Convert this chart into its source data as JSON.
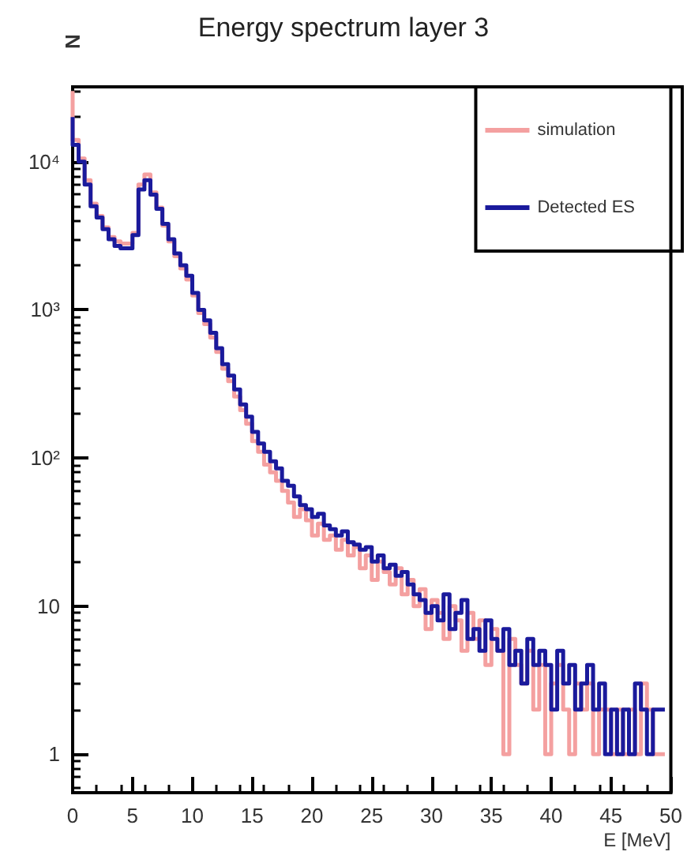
{
  "chart_data": {
    "type": "step",
    "title": "Energy spectrum layer 3",
    "xlabel": "E [MeV]",
    "ylabel": "N",
    "x": [
      0,
      0.5,
      1,
      1.5,
      2,
      2.5,
      3,
      3.5,
      4,
      4.5,
      5,
      5.5,
      6,
      6.5,
      7,
      7.5,
      8,
      8.5,
      9,
      9.5,
      10,
      10.5,
      11,
      11.5,
      12,
      12.5,
      13,
      13.5,
      14,
      14.5,
      15,
      15.5,
      16,
      16.5,
      17,
      17.5,
      18,
      18.5,
      19,
      19.5,
      20,
      20.5,
      21,
      21.5,
      22,
      22.5,
      23,
      23.5,
      24,
      24.5,
      25,
      25.5,
      26,
      26.5,
      27,
      27.5,
      28,
      28.5,
      29,
      29.5,
      30,
      30.5,
      31,
      31.5,
      32,
      32.5,
      33,
      33.5,
      34,
      34.5,
      35,
      35.5,
      36,
      36.5,
      37,
      37.5,
      38,
      38.5,
      39,
      39.5,
      40,
      40.5,
      41,
      41.5,
      42,
      42.5,
      43,
      43.5,
      44,
      44.5,
      45,
      45.5,
      46,
      46.5,
      47,
      47.5,
      48,
      48.5,
      49,
      49.5
    ],
    "series": [
      {
        "name": "simulation",
        "color": "#f4a0a0",
        "values": [
          30000,
          14000,
          10500,
          7500,
          5200,
          4300,
          3600,
          3100,
          2900,
          2800,
          2800,
          3300,
          7000,
          8200,
          6200,
          4900,
          3700,
          2900,
          2300,
          1900,
          1600,
          1250,
          950,
          800,
          650,
          520,
          400,
          330,
          260,
          210,
          170,
          130,
          110,
          90,
          80,
          70,
          60,
          50,
          40,
          45,
          38,
          30,
          36,
          28,
          30,
          24,
          28,
          22,
          25,
          18,
          22,
          15,
          20,
          17,
          14,
          18,
          12,
          15,
          10,
          13,
          7,
          11,
          9,
          6,
          10,
          8,
          5,
          9,
          6,
          8,
          4,
          7,
          5,
          1,
          6,
          4,
          3,
          5,
          2,
          4,
          1,
          3,
          4,
          2,
          1,
          3,
          2,
          3,
          1,
          2,
          2,
          1,
          2,
          1,
          2,
          1,
          3,
          2,
          1,
          1
        ]
      },
      {
        "name": "Detected ES",
        "color": "#1a1a9c",
        "values": [
          20000,
          13000,
          10000,
          7000,
          5000,
          4200,
          3500,
          3000,
          2700,
          2600,
          2600,
          3200,
          6500,
          7500,
          6000,
          4800,
          3800,
          3000,
          2400,
          2000,
          1700,
          1300,
          1000,
          850,
          700,
          550,
          430,
          360,
          290,
          230,
          190,
          150,
          125,
          110,
          95,
          85,
          70,
          65,
          55,
          48,
          45,
          40,
          42,
          35,
          33,
          30,
          32,
          27,
          26,
          24,
          25,
          20,
          22,
          18,
          19,
          16,
          17,
          14,
          12,
          11,
          9,
          10,
          8,
          12,
          7,
          9,
          11,
          6,
          7,
          5,
          8,
          6,
          5,
          7,
          4,
          5,
          3,
          6,
          4,
          5,
          4,
          2,
          5,
          3,
          4,
          2,
          3,
          4,
          2,
          3,
          1,
          2,
          1,
          2,
          1,
          3,
          2,
          1,
          2,
          2
        ]
      }
    ],
    "xlim": [
      0,
      50
    ],
    "xticks": [
      0,
      5,
      10,
      15,
      20,
      25,
      30,
      35,
      40,
      45,
      50
    ],
    "ylim": [
      0.55,
      32000
    ],
    "log": "y",
    "yticks": [
      1,
      10,
      {
        "value": 100,
        "label": "10²"
      },
      {
        "value": 1000,
        "label": "10³"
      },
      {
        "value": 10000,
        "label": "10⁴"
      }
    ],
    "grid": false,
    "legend": "top right",
    "line_style": "solid",
    "marker": "none"
  }
}
